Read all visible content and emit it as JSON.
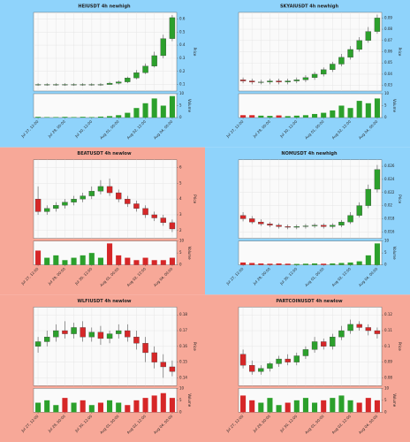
{
  "chart_data": [
    {
      "type": "candlestick",
      "title": "HEIUSDT 4h newhigh",
      "background": "#8fd3fb",
      "up_color": "#2ca02c",
      "down_color": "#d62728",
      "grid": true,
      "ylabel": "Price",
      "vlabel": "Volume",
      "categories": [
        "Jul 27, 12:00",
        null,
        null,
        "Jul 29, 00:00",
        null,
        null,
        "Jul 30, 12:00",
        null,
        null,
        "Aug 01, 00:00",
        null,
        null,
        "Aug 02, 12:00",
        null,
        null,
        "Aug 04, 00:00"
      ],
      "open": [
        0.1,
        0.1,
        0.1,
        0.1,
        0.1,
        0.1,
        0.1,
        0.1,
        0.1,
        0.11,
        0.12,
        0.15,
        0.19,
        0.24,
        0.32,
        0.45
      ],
      "high": [
        0.11,
        0.11,
        0.11,
        0.11,
        0.11,
        0.11,
        0.11,
        0.11,
        0.12,
        0.13,
        0.16,
        0.21,
        0.26,
        0.35,
        0.48,
        0.63
      ],
      "low": [
        0.09,
        0.09,
        0.09,
        0.09,
        0.09,
        0.09,
        0.09,
        0.09,
        0.1,
        0.1,
        0.11,
        0.14,
        0.18,
        0.23,
        0.3,
        0.43
      ],
      "close": [
        0.1,
        0.1,
        0.1,
        0.1,
        0.1,
        0.1,
        0.1,
        0.1,
        0.11,
        0.12,
        0.15,
        0.19,
        0.24,
        0.32,
        0.45,
        0.61
      ],
      "volume": [
        0.3,
        0.2,
        0.2,
        0.3,
        0.2,
        0.3,
        0.2,
        0.4,
        0.6,
        1,
        2,
        4,
        6,
        8,
        5,
        9
      ],
      "ylim": [
        0.05,
        0.65
      ],
      "yticks": [
        0.1,
        0.2,
        0.3,
        0.4,
        0.5,
        0.6
      ],
      "vlim": [
        0,
        10
      ],
      "vticks": [
        0,
        5,
        10
      ]
    },
    {
      "type": "candlestick",
      "title": "SKYAIUSDT 4h newhigh",
      "background": "#8fd3fb",
      "up_color": "#2ca02c",
      "down_color": "#d62728",
      "grid": true,
      "ylabel": "Price",
      "vlabel": "Volume",
      "categories": [
        "Jul 27, 12:00",
        null,
        null,
        "Jul 29, 00:00",
        null,
        null,
        "Jul 30, 12:00",
        null,
        null,
        "Aug 01, 00:00",
        null,
        null,
        "Aug 02, 12:00",
        null,
        null,
        "Aug 04, 00:00"
      ],
      "open": [
        0.035,
        0.034,
        0.033,
        0.033,
        0.034,
        0.033,
        0.034,
        0.035,
        0.037,
        0.04,
        0.044,
        0.049,
        0.055,
        0.062,
        0.07,
        0.078
      ],
      "high": [
        0.037,
        0.036,
        0.035,
        0.036,
        0.036,
        0.036,
        0.037,
        0.039,
        0.042,
        0.046,
        0.051,
        0.058,
        0.065,
        0.073,
        0.082,
        0.093
      ],
      "low": [
        0.032,
        0.031,
        0.031,
        0.031,
        0.031,
        0.031,
        0.032,
        0.033,
        0.035,
        0.038,
        0.042,
        0.047,
        0.053,
        0.06,
        0.068,
        0.076
      ],
      "close": [
        0.034,
        0.033,
        0.033,
        0.034,
        0.033,
        0.034,
        0.035,
        0.037,
        0.04,
        0.044,
        0.049,
        0.055,
        0.062,
        0.07,
        0.078,
        0.09
      ],
      "volume": [
        1,
        1,
        0.8,
        0.7,
        0.9,
        0.6,
        0.8,
        1,
        1.5,
        2,
        3,
        5,
        4,
        7,
        6,
        8
      ],
      "ylim": [
        0.025,
        0.095
      ],
      "yticks": [
        0.03,
        0.04,
        0.05,
        0.06,
        0.07,
        0.08,
        0.09
      ],
      "vlim": [
        0,
        10
      ],
      "vticks": [
        0,
        5,
        10
      ]
    },
    {
      "type": "candlestick",
      "title": "BEATUSDT 4h newlow",
      "background": "#f7a898",
      "up_color": "#2ca02c",
      "down_color": "#d62728",
      "grid": true,
      "ylabel": "Price",
      "vlabel": "Volume",
      "categories": [
        "Jul 27, 12:00",
        null,
        null,
        "Jul 29, 00:00",
        null,
        null,
        "Jul 30, 12:00",
        null,
        null,
        "Aug 01, 00:00",
        null,
        null,
        "Aug 02, 12:00",
        null,
        null,
        "Aug 04, 00:00"
      ],
      "open": [
        4.0,
        3.2,
        3.4,
        3.6,
        3.8,
        4.0,
        4.2,
        4.5,
        4.8,
        4.4,
        4.0,
        3.7,
        3.4,
        3.0,
        2.8,
        2.5
      ],
      "high": [
        4.8,
        3.6,
        3.8,
        4.0,
        4.2,
        4.4,
        4.8,
        5.2,
        5.3,
        4.6,
        4.2,
        3.9,
        3.6,
        3.2,
        3.0,
        2.7
      ],
      "low": [
        3.0,
        3.0,
        3.2,
        3.4,
        3.6,
        3.8,
        4.0,
        4.3,
        4.2,
        3.8,
        3.5,
        3.2,
        2.8,
        2.6,
        2.3,
        1.9
      ],
      "close": [
        3.2,
        3.4,
        3.6,
        3.8,
        4.0,
        4.2,
        4.5,
        4.8,
        4.4,
        4.0,
        3.7,
        3.4,
        3.0,
        2.8,
        2.5,
        2.1
      ],
      "volume": [
        6,
        3,
        4,
        2,
        3,
        4,
        5,
        3,
        9,
        4,
        3,
        2,
        3,
        2,
        2,
        3
      ],
      "ylim": [
        1.5,
        6.5
      ],
      "yticks": [
        2,
        3,
        4,
        5,
        6
      ],
      "vlim": [
        0,
        10
      ],
      "vticks": [
        0,
        5,
        10
      ]
    },
    {
      "type": "candlestick",
      "title": "NOMUSDT 4h newhigh",
      "background": "#8fd3fb",
      "up_color": "#2ca02c",
      "down_color": "#d62728",
      "grid": true,
      "ylabel": "Price",
      "vlabel": "Volume",
      "categories": [
        "Jul 27, 12:00",
        null,
        null,
        "Jul 29, 00:00",
        null,
        null,
        "Jul 30, 12:00",
        null,
        null,
        "Aug 01, 00:00",
        null,
        null,
        "Aug 02, 12:00",
        null,
        null,
        "Aug 04, 00:00"
      ],
      "open": [
        0.0185,
        0.018,
        0.0175,
        0.0172,
        0.017,
        0.0168,
        0.0167,
        0.0168,
        0.0169,
        0.017,
        0.0168,
        0.017,
        0.0175,
        0.0185,
        0.02,
        0.0225
      ],
      "high": [
        0.019,
        0.0184,
        0.0179,
        0.0175,
        0.0173,
        0.0171,
        0.0171,
        0.0172,
        0.0173,
        0.0173,
        0.0173,
        0.0178,
        0.019,
        0.0205,
        0.0232,
        0.0262
      ],
      "low": [
        0.0176,
        0.0172,
        0.0169,
        0.0167,
        0.0165,
        0.0164,
        0.0164,
        0.0165,
        0.0166,
        0.0165,
        0.0165,
        0.0167,
        0.0172,
        0.0182,
        0.0196,
        0.022
      ],
      "close": [
        0.018,
        0.0175,
        0.0172,
        0.017,
        0.0168,
        0.0167,
        0.0168,
        0.0169,
        0.017,
        0.0168,
        0.017,
        0.0175,
        0.0185,
        0.02,
        0.0225,
        0.0255
      ],
      "volume": [
        1,
        0.8,
        0.6,
        0.5,
        0.6,
        0.5,
        0.4,
        0.5,
        0.6,
        0.5,
        0.6,
        0.8,
        1,
        1.5,
        4,
        9
      ],
      "ylim": [
        0.015,
        0.027
      ],
      "yticks": [
        0.016,
        0.018,
        0.02,
        0.022,
        0.024,
        0.026
      ],
      "vlim": [
        0,
        10
      ],
      "vticks": [
        0,
        5,
        10
      ]
    },
    {
      "type": "candlestick",
      "title": "WLFIUSDT 4h newlow",
      "background": "#f7a898",
      "up_color": "#2ca02c",
      "down_color": "#d62728",
      "grid": true,
      "ylabel": "Price",
      "vlabel": "Volume",
      "categories": [
        "Jul 27, 12:00",
        null,
        null,
        "Jul 29, 00:00",
        null,
        null,
        "Jul 30, 12:00",
        null,
        null,
        "Aug 01, 00:00",
        null,
        null,
        "Aug 02, 12:00",
        null,
        null,
        "Aug 04, 00:00"
      ],
      "open": [
        0.16,
        0.163,
        0.166,
        0.17,
        0.168,
        0.172,
        0.166,
        0.169,
        0.165,
        0.168,
        0.17,
        0.166,
        0.162,
        0.156,
        0.15,
        0.147
      ],
      "high": [
        0.166,
        0.17,
        0.174,
        0.176,
        0.175,
        0.176,
        0.172,
        0.173,
        0.17,
        0.174,
        0.174,
        0.17,
        0.166,
        0.16,
        0.155,
        0.151
      ],
      "low": [
        0.156,
        0.16,
        0.163,
        0.165,
        0.165,
        0.163,
        0.163,
        0.161,
        0.162,
        0.165,
        0.163,
        0.158,
        0.15,
        0.146,
        0.14,
        0.141
      ],
      "close": [
        0.163,
        0.166,
        0.17,
        0.168,
        0.172,
        0.166,
        0.169,
        0.165,
        0.168,
        0.17,
        0.166,
        0.162,
        0.156,
        0.15,
        0.147,
        0.144
      ],
      "volume": [
        4,
        5,
        3,
        6,
        4,
        5,
        3,
        4,
        5,
        4,
        3,
        5,
        6,
        7,
        8,
        6
      ],
      "ylim": [
        0.135,
        0.185
      ],
      "yticks": [
        0.14,
        0.15,
        0.16,
        0.17,
        0.18
      ],
      "vlim": [
        0,
        10
      ],
      "vticks": [
        0,
        5,
        10
      ]
    },
    {
      "type": "candlestick",
      "title": "PARTCOINUSDT 4h newlow",
      "background": "#f7a898",
      "up_color": "#2ca02c",
      "down_color": "#d62728",
      "grid": true,
      "ylabel": "Price",
      "vlabel": "Volume",
      "categories": [
        "Jul 27, 12:00",
        null,
        null,
        "Jul 29, 00:00",
        null,
        null,
        "Jul 30, 12:00",
        null,
        null,
        "Aug 01, 00:00",
        null,
        null,
        "Aug 02, 12:00",
        null,
        null,
        "Aug 04, 00:00"
      ],
      "open": [
        0.095,
        0.088,
        0.084,
        0.086,
        0.089,
        0.092,
        0.09,
        0.094,
        0.098,
        0.103,
        0.1,
        0.106,
        0.11,
        0.114,
        0.112,
        0.11
      ],
      "high": [
        0.098,
        0.091,
        0.088,
        0.09,
        0.094,
        0.095,
        0.096,
        0.1,
        0.106,
        0.105,
        0.108,
        0.113,
        0.117,
        0.116,
        0.114,
        0.112
      ],
      "low": [
        0.086,
        0.082,
        0.082,
        0.084,
        0.087,
        0.088,
        0.088,
        0.092,
        0.096,
        0.098,
        0.098,
        0.104,
        0.108,
        0.11,
        0.107,
        0.105
      ],
      "close": [
        0.088,
        0.084,
        0.086,
        0.089,
        0.092,
        0.09,
        0.094,
        0.098,
        0.103,
        0.1,
        0.106,
        0.11,
        0.114,
        0.112,
        0.11,
        0.108
      ],
      "volume": [
        7,
        5,
        4,
        6,
        3,
        4,
        5,
        6,
        4,
        5,
        6,
        7,
        5,
        4,
        6,
        5
      ],
      "ylim": [
        0.075,
        0.125
      ],
      "yticks": [
        0.08,
        0.09,
        0.1,
        0.11,
        0.12
      ],
      "vlim": [
        0,
        10
      ],
      "vticks": [
        0,
        5,
        10
      ]
    }
  ]
}
